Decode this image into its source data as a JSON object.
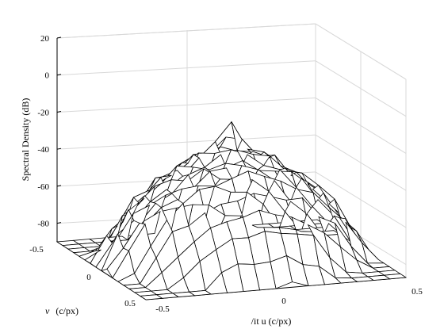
{
  "chart_data": {
    "type": "surface",
    "title": "",
    "zlabel": "Spectral Density (dB)",
    "xlabel": "/it u  (c/px)",
    "ylabel_italic": "v",
    "ylabel_units": "(c/px)",
    "zlim": [
      -90,
      20
    ],
    "z_ticks": [
      "20",
      "0",
      "-20",
      "-40",
      "-60",
      "-80"
    ],
    "x_ticks": [
      "-0.5",
      "0",
      "0.5"
    ],
    "y_ticks": [
      "-0.5",
      "0",
      "0.5"
    ],
    "grid": true,
    "mesh_color": "#000000",
    "face_color": "#ffffff",
    "surface": {
      "grid_size": 17,
      "u_range": [
        -0.5,
        0.5
      ],
      "v_range": [
        -0.5,
        0.5
      ],
      "peak_db": -16,
      "floor_db": -90,
      "description_model": "radially decaying spectral density, peak at u=0, v=0"
    }
  }
}
